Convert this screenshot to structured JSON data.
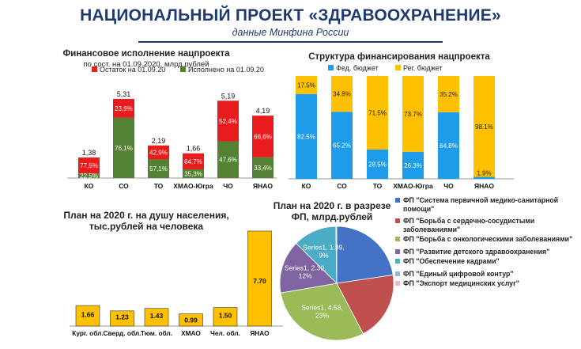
{
  "header": {
    "title": "НАЦИОНАЛЬНЫЙ ПРОЕКТ «ЗДРАВООХРАНЕНИЕ»",
    "subtitle": "данные Минфина России"
  },
  "chart_data": [
    {
      "type": "bar",
      "id": "finance",
      "title": "Финансовое исполнение нацпроекта",
      "subtitle": "по сост. на 01.09.2020, млрд.рублей",
      "categories": [
        "КО",
        "СО",
        "ТО",
        "ХМАО-Югра",
        "ЧО",
        "ЯНАО"
      ],
      "totals": [
        "1,38",
        "5,31",
        "2,19",
        "1,66",
        "5,19",
        "4,19"
      ],
      "total_values": [
        1.38,
        5.31,
        2.19,
        1.66,
        5.19,
        4.19
      ],
      "series": [
        {
          "name": "Исполнено на 01.09.20",
          "color": "#548235",
          "values": [
            22.5,
            76.1,
            57.1,
            35.3,
            47.6,
            33.4
          ],
          "labels": [
            "22,5%",
            "76,1%",
            "57,1%",
            "35,3%",
            "47,6%",
            "33,4%"
          ]
        },
        {
          "name": "Остаток на 01.09.20",
          "color": "#e81c1c",
          "values": [
            77.5,
            23.9,
            42.9,
            64.7,
            52.4,
            66.6
          ],
          "labels": [
            "77,5%",
            "23,9%",
            "42,9%",
            "64,7%",
            "52,4%",
            "66,6%"
          ]
        }
      ],
      "legend": "top"
    },
    {
      "type": "bar",
      "id": "structure",
      "title": "Структура финансирования нацпроекта",
      "categories": [
        "КО",
        "СО",
        "ТО",
        "ХМАО-Югра",
        "ЧО",
        "ЯНАО"
      ],
      "series": [
        {
          "name": "Фед. бюджет",
          "color": "#1e9be9",
          "values": [
            82.5,
            65.2,
            28.5,
            26.3,
            64.8,
            1.9
          ],
          "labels": [
            "82.5%",
            "65.2%",
            "28.5%",
            "26.3%",
            "64.8%",
            "1.9%"
          ]
        },
        {
          "name": "Рег. бюджет",
          "color": "#ffc000",
          "values": [
            17.5,
            34.8,
            71.5,
            73.7,
            35.2,
            98.1
          ],
          "labels": [
            "17.5%",
            "34.8%",
            "71.5%",
            "73.7%",
            "35.2%",
            "98.1%"
          ]
        }
      ],
      "legend": "top"
    },
    {
      "type": "bar",
      "id": "percapita",
      "title": "План на 2020 г. на душу населения, тыс.рублей на человека",
      "title_lines": [
        "План на 2020 г. на душу населения,",
        "тыс.рублей на человека"
      ],
      "categories": [
        "Кург. обл.",
        "Сверд. обл.",
        "Тюм. обл.",
        "ХМАО",
        "Чел. обл.",
        "ЯНАО"
      ],
      "values": [
        1.66,
        1.23,
        1.43,
        0.99,
        1.5,
        7.7
      ],
      "labels": [
        "1.66",
        "1.23",
        "1.43",
        "0.99",
        "1.50",
        "7.70"
      ],
      "color": "#ffc000"
    },
    {
      "type": "pie",
      "id": "plan-fp",
      "title": "План на 2020 г. в разрезе ФП, млрд.рублей",
      "title_lines": [
        "План на 2020 г. в разрезе",
        "ФП, млрд.рублей"
      ],
      "values": [
        3.46,
        3.0,
        4.58,
        2.3,
        1.89,
        0.04
      ],
      "colors": [
        "#4472c4",
        "#c0504d",
        "#9bbb59",
        "#8064a2",
        "#4bacc6",
        "#f79646",
        "#9cb7de",
        "#f2b7b7"
      ],
      "slice_labels": [
        {
          "index": 2,
          "lines": [
            "Series1, 4.58,",
            "23%"
          ]
        },
        {
          "index": 3,
          "lines": [
            "Series1, 2.30,",
            "12%"
          ]
        },
        {
          "index": 4,
          "lines": [
            "Series1, 1.89,",
            "9%"
          ]
        },
        {
          "index": 5,
          "lines": [
            "0.04, 0%"
          ]
        }
      ],
      "legend": [
        {
          "label": "ФП \"Система первичной медико-санитарной помощи\"",
          "color": "#4472c4"
        },
        {
          "label": "ФП \"Борьба с сердечно-сосудистыми заболеваниями\"",
          "color": "#c0504d"
        },
        {
          "label": "ФП \"Борьба с онкологическими заболеваниями\"",
          "color": "#9bbb59"
        },
        {
          "label": "ФП \"Развитие детского здравоохранения\"",
          "color": "#8064a2"
        },
        {
          "label": "ФП \"Обеспечение  кадрами\"",
          "color": "#4bacc6"
        },
        {
          "label": "ФП \"Единый цифровой контур\"",
          "color": "#9cb7de"
        },
        {
          "label": "ФП \"Экспорт медицинских услуг\"",
          "color": "#f2b7b7"
        }
      ]
    }
  ]
}
